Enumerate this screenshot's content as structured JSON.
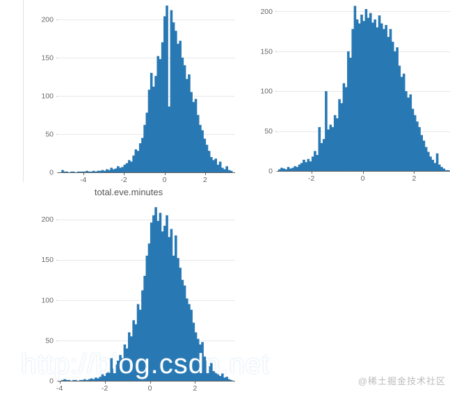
{
  "watermark": {
    "text": "http://blog.csdn.net"
  },
  "badge": {
    "text": "@稀土掘金技术社区"
  },
  "colors": {
    "bar": "#2878b4",
    "grid": "#e8e8e8",
    "axis": "#5b5b5b",
    "tick_label": "#666666",
    "xlabel": "#555555",
    "watermark": "#ffffff",
    "badge": "#bcbcbc",
    "stray": "#dbe5eb"
  },
  "chart_data": [
    {
      "type": "bar",
      "subtype": "histogram",
      "title": "",
      "xlabel": "total.eve.minutes",
      "ylabel": "",
      "xlim": [
        -5.19,
        3.34
      ],
      "ylim": [
        0,
        218
      ],
      "xticks": [
        -4,
        -2,
        0,
        2
      ],
      "yticks": [
        0,
        50,
        100,
        150,
        200
      ],
      "grid": true,
      "legend": "none",
      "heights": [
        0,
        3,
        1,
        1,
        0,
        1,
        1,
        0,
        1,
        1,
        1,
        1,
        2,
        1,
        1,
        2,
        1,
        2,
        2,
        3,
        2,
        4,
        3,
        6,
        4,
        5,
        8,
        6,
        7,
        10,
        12,
        16,
        14,
        22,
        30,
        28,
        38,
        45,
        62,
        78,
        108,
        130,
        112,
        126,
        152,
        148,
        170,
        204,
        218,
        86,
        212,
        196,
        185,
        168,
        172,
        150,
        140,
        122,
        128,
        105,
        92,
        96,
        75,
        62,
        55,
        44,
        36,
        28,
        20,
        16,
        18,
        10,
        14,
        6,
        4,
        8,
        3,
        2
      ]
    },
    {
      "type": "bar",
      "subtype": "histogram",
      "title": "",
      "xlabel": "",
      "ylabel": "",
      "xlim": [
        -3.29,
        3.37
      ],
      "ylim": [
        0,
        210
      ],
      "xticks": [
        -2,
        0,
        2
      ],
      "yticks": [
        0,
        50,
        100,
        150,
        200
      ],
      "grid": true,
      "legend": "none",
      "heights": [
        2,
        4,
        3,
        2,
        5,
        3,
        4,
        6,
        5,
        8,
        10,
        14,
        11,
        15,
        12,
        18,
        25,
        20,
        55,
        35,
        40,
        100,
        52,
        58,
        55,
        70,
        66,
        90,
        85,
        110,
        105,
        150,
        142,
        178,
        207,
        190,
        185,
        196,
        188,
        203,
        192,
        198,
        186,
        190,
        180,
        195,
        185,
        178,
        183,
        168,
        178,
        162,
        150,
        155,
        132,
        118,
        122,
        100,
        92,
        96,
        78,
        70,
        62,
        55,
        45,
        38,
        30,
        24,
        18,
        14,
        10,
        22,
        8,
        5,
        3,
        1,
        1
      ]
    },
    {
      "type": "bar",
      "subtype": "histogram",
      "title": "",
      "xlabel": "",
      "ylabel": "",
      "xlim": [
        -4.02,
        3.65
      ],
      "ylim": [
        0,
        216
      ],
      "xticks": [
        -4,
        -2,
        0,
        2
      ],
      "yticks": [
        0,
        50,
        100,
        150,
        200
      ],
      "grid": true,
      "legend": "none",
      "heights": [
        0,
        1,
        2,
        1,
        1,
        0,
        1,
        1,
        0,
        1,
        1,
        2,
        1,
        2,
        3,
        2,
        4,
        3,
        5,
        8,
        6,
        12,
        10,
        28,
        15,
        20,
        25,
        32,
        28,
        45,
        40,
        60,
        55,
        75,
        70,
        95,
        88,
        112,
        130,
        155,
        170,
        196,
        205,
        215,
        198,
        208,
        185,
        192,
        205,
        178,
        188,
        155,
        180,
        152,
        140,
        125,
        118,
        102,
        95,
        88,
        72,
        60,
        52,
        45,
        48,
        30,
        25,
        18,
        22,
        12,
        10,
        8,
        6,
        9,
        4,
        5,
        2,
        1
      ]
    }
  ]
}
